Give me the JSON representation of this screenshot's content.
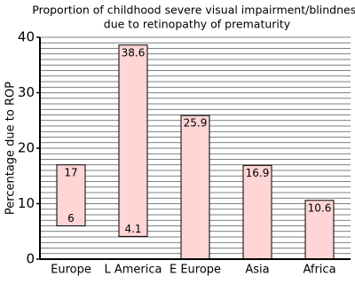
{
  "chart_data": {
    "type": "floating-bar",
    "title": "Proportion of childhood severe visual impairment/blindness",
    "subtitle": "due to retinopathy of prematurity",
    "y_label": "Percentage due to ROP",
    "categories": [
      "Europe",
      "L America",
      "E Europe",
      "Asia",
      "Africa"
    ],
    "low": [
      6,
      4.1,
      0,
      0,
      0
    ],
    "high": [
      17,
      38.6,
      25.9,
      16.9,
      10.6
    ],
    "color": "#ffd5d5",
    "ylim": [
      0,
      40
    ],
    "yticks": [
      0,
      10,
      20,
      30,
      40
    ],
    "grid": true,
    "grid_step": 1
  }
}
